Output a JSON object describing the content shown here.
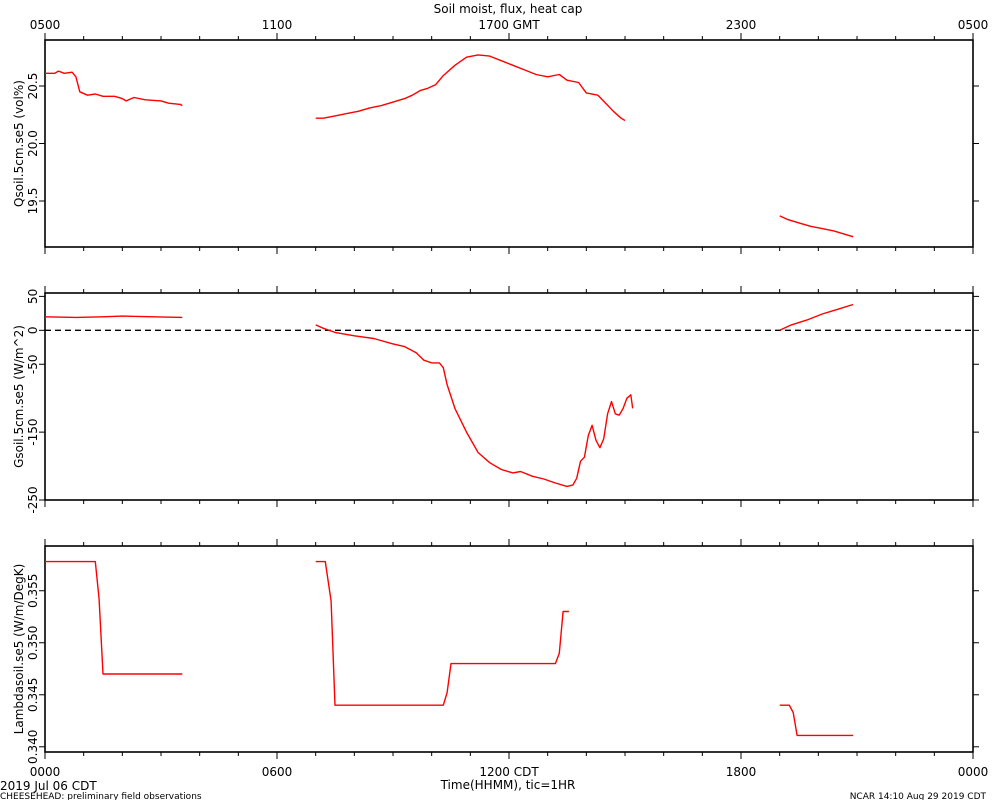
{
  "title": "Soil moist, flux, heat cap",
  "top_axis": {
    "ticks": [
      {
        "t": 0,
        "label": "0500"
      },
      {
        "t": 6,
        "label": "1100"
      },
      {
        "t": 12,
        "label": "1700 GMT"
      },
      {
        "t": 18,
        "label": "2300"
      },
      {
        "t": 24,
        "label": "0500"
      }
    ]
  },
  "bottom_axis": {
    "ticks": [
      {
        "t": 0,
        "label": "0000"
      },
      {
        "t": 6,
        "label": "0600"
      },
      {
        "t": 12,
        "label": "1200 CDT"
      },
      {
        "t": 18,
        "label": "1800"
      },
      {
        "t": 24,
        "label": "0000"
      }
    ],
    "xlabel": "Time(HHMM), tic=1HR",
    "date_label": "2019 Jul 06 CDT"
  },
  "footer": {
    "left": "CHEESEHEAD: preliminary field observations",
    "right": "NCAR 14:10 Aug 29 2019 CDT"
  },
  "colors": {
    "series": "#ff0000",
    "axes": "#000000",
    "zero_line": "#000000"
  },
  "chart_data": [
    {
      "type": "line",
      "ylabel": "Qsoil.5cm.se5 (vol%)",
      "xlim": [
        0,
        24
      ],
      "ylim": [
        19.1,
        20.9
      ],
      "yticks": [
        {
          "v": 19.5,
          "label": "19.5"
        },
        {
          "v": 20.0,
          "label": "20.0"
        },
        {
          "v": 20.5,
          "label": "20.5"
        }
      ],
      "zero_line": false,
      "series": [
        {
          "segments": [
            [
              [
                0,
                20.61
              ],
              [
                0.25,
                20.61
              ],
              [
                0.35,
                20.63
              ],
              [
                0.5,
                20.61
              ],
              [
                0.7,
                20.62
              ],
              [
                0.8,
                20.58
              ],
              [
                0.9,
                20.45
              ],
              [
                1.1,
                20.42
              ],
              [
                1.3,
                20.43
              ],
              [
                1.5,
                20.41
              ],
              [
                1.8,
                20.41
              ],
              [
                2.0,
                20.39
              ],
              [
                2.1,
                20.37
              ],
              [
                2.3,
                20.4
              ],
              [
                2.6,
                20.38
              ],
              [
                3.0,
                20.37
              ],
              [
                3.2,
                20.35
              ],
              [
                3.5,
                20.34
              ],
              [
                3.55,
                20.33
              ]
            ],
            [
              [
                7,
                20.22
              ],
              [
                7.2,
                20.22
              ],
              [
                7.5,
                20.24
              ],
              [
                7.8,
                20.26
              ],
              [
                8.1,
                20.28
              ],
              [
                8.4,
                20.31
              ],
              [
                8.7,
                20.33
              ],
              [
                9.0,
                20.36
              ],
              [
                9.3,
                20.39
              ],
              [
                9.5,
                20.42
              ],
              [
                9.7,
                20.46
              ],
              [
                9.9,
                20.48
              ],
              [
                10.1,
                20.51
              ],
              [
                10.3,
                20.59
              ],
              [
                10.6,
                20.68
              ],
              [
                10.9,
                20.75
              ],
              [
                11.2,
                20.77
              ],
              [
                11.5,
                20.76
              ],
              [
                11.8,
                20.72
              ],
              [
                12.1,
                20.68
              ],
              [
                12.4,
                20.64
              ],
              [
                12.7,
                20.6
              ],
              [
                13.0,
                20.58
              ],
              [
                13.3,
                20.6
              ],
              [
                13.5,
                20.55
              ],
              [
                13.8,
                20.53
              ],
              [
                14.0,
                20.44
              ],
              [
                14.3,
                20.42
              ],
              [
                14.5,
                20.35
              ],
              [
                14.7,
                20.28
              ],
              [
                14.9,
                20.22
              ],
              [
                15.0,
                20.2
              ]
            ],
            [
              [
                19,
                19.37
              ],
              [
                19.2,
                19.34
              ],
              [
                19.5,
                19.31
              ],
              [
                19.8,
                19.28
              ],
              [
                20.1,
                19.26
              ],
              [
                20.4,
                19.24
              ],
              [
                20.7,
                19.21
              ],
              [
                20.9,
                19.19
              ]
            ]
          ]
        }
      ]
    },
    {
      "type": "line",
      "ylabel": "Gsoil.5cm.se5 (W/m^2)",
      "xlim": [
        0,
        24
      ],
      "ylim": [
        -250,
        55
      ],
      "yticks": [
        {
          "v": 50,
          "label": "50"
        },
        {
          "v": 0,
          "label": "0"
        },
        {
          "v": -50,
          "label": "-50"
        },
        {
          "v": -150,
          "label": "-150"
        },
        {
          "v": -250,
          "label": "-250"
        }
      ],
      "zero_line": true,
      "series": [
        {
          "segments": [
            [
              [
                0,
                20
              ],
              [
                0.8,
                19
              ],
              [
                1.5,
                20
              ],
              [
                2.0,
                21
              ],
              [
                2.8,
                20
              ],
              [
                3.55,
                19
              ]
            ],
            [
              [
                7,
                8
              ],
              [
                7.2,
                3
              ],
              [
                7.5,
                -3
              ],
              [
                8.0,
                -8
              ],
              [
                8.5,
                -12
              ],
              [
                9.0,
                -20
              ],
              [
                9.3,
                -24
              ],
              [
                9.6,
                -33
              ],
              [
                9.8,
                -44
              ],
              [
                10.0,
                -48
              ],
              [
                10.2,
                -48
              ],
              [
                10.3,
                -55
              ],
              [
                10.4,
                -80
              ],
              [
                10.6,
                -115
              ],
              [
                10.9,
                -150
              ],
              [
                11.2,
                -180
              ],
              [
                11.5,
                -195
              ],
              [
                11.8,
                -205
              ],
              [
                12.1,
                -210
              ],
              [
                12.3,
                -208
              ],
              [
                12.6,
                -215
              ],
              [
                12.9,
                -219
              ],
              [
                13.2,
                -225
              ],
              [
                13.5,
                -230
              ],
              [
                13.65,
                -228
              ],
              [
                13.75,
                -218
              ],
              [
                13.85,
                -193
              ],
              [
                13.95,
                -187
              ],
              [
                14.05,
                -155
              ],
              [
                14.15,
                -140
              ],
              [
                14.25,
                -162
              ],
              [
                14.35,
                -173
              ],
              [
                14.45,
                -160
              ],
              [
                14.55,
                -123
              ],
              [
                14.65,
                -105
              ],
              [
                14.75,
                -123
              ],
              [
                14.85,
                -125
              ],
              [
                14.95,
                -115
              ],
              [
                15.05,
                -100
              ],
              [
                15.15,
                -95
              ],
              [
                15.2,
                -115
              ]
            ],
            [
              [
                19,
                0
              ],
              [
                19.3,
                8
              ],
              [
                19.7,
                15
              ],
              [
                20.1,
                24
              ],
              [
                20.5,
                31
              ],
              [
                20.9,
                38
              ]
            ]
          ]
        }
      ]
    },
    {
      "type": "line",
      "ylabel": "Lambdasoil.se5 (W/m/DegK)",
      "xlim": [
        0,
        24
      ],
      "ylim": [
        0.3395,
        0.3593
      ],
      "yticks": [
        {
          "v": 0.34,
          "label": "0.340"
        },
        {
          "v": 0.345,
          "label": "0.345"
        },
        {
          "v": 0.35,
          "label": "0.350"
        },
        {
          "v": 0.355,
          "label": "0.355"
        }
      ],
      "zero_line": false,
      "series": [
        {
          "segments": [
            [
              [
                0,
                0.3578
              ],
              [
                1.3,
                0.3578
              ],
              [
                1.4,
                0.3542
              ],
              [
                1.5,
                0.347
              ],
              [
                3.55,
                0.347
              ]
            ],
            [
              [
                7,
                0.3578
              ],
              [
                7.25,
                0.3578
              ],
              [
                7.4,
                0.354
              ],
              [
                7.5,
                0.344
              ],
              [
                10.3,
                0.344
              ],
              [
                10.4,
                0.3452
              ],
              [
                10.5,
                0.348
              ],
              [
                13.2,
                0.348
              ],
              [
                13.3,
                0.349
              ],
              [
                13.4,
                0.353
              ],
              [
                13.55,
                0.353
              ]
            ],
            [
              [
                19,
                0.344
              ],
              [
                19.25,
                0.344
              ],
              [
                19.35,
                0.3433
              ],
              [
                19.45,
                0.3411
              ],
              [
                20.9,
                0.3411
              ]
            ]
          ]
        }
      ]
    }
  ]
}
